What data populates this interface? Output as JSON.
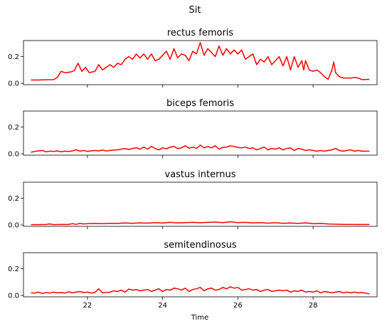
{
  "chart_data": {
    "type": "line",
    "title": "Sit",
    "xlabel": "Time",
    "ylabel": "",
    "xlim": [
      20.3,
      29.7
    ],
    "ylim": [
      -0.01,
      0.32
    ],
    "x_ticks": [
      22,
      24,
      26,
      28
    ],
    "x_tick_labels": [
      "22",
      "24",
      "26",
      "28"
    ],
    "y_ticks": [
      0.0,
      0.2
    ],
    "y_tick_labels": [
      "0.0",
      "0.2"
    ],
    "line_color": "#ff0000",
    "grid": false,
    "legend": "none",
    "panels": [
      {
        "title": "rectus femoris",
        "points": [
          [
            20.5,
            0.025
          ],
          [
            20.7,
            0.025
          ],
          [
            20.9,
            0.027
          ],
          [
            21.1,
            0.028
          ],
          [
            21.2,
            0.045
          ],
          [
            21.3,
            0.09
          ],
          [
            21.4,
            0.08
          ],
          [
            21.55,
            0.085
          ],
          [
            21.65,
            0.095
          ],
          [
            21.75,
            0.15
          ],
          [
            21.85,
            0.09
          ],
          [
            21.95,
            0.12
          ],
          [
            22.05,
            0.08
          ],
          [
            22.2,
            0.09
          ],
          [
            22.3,
            0.14
          ],
          [
            22.4,
            0.1
          ],
          [
            22.5,
            0.12
          ],
          [
            22.6,
            0.14
          ],
          [
            22.7,
            0.12
          ],
          [
            22.8,
            0.15
          ],
          [
            22.9,
            0.14
          ],
          [
            23.0,
            0.18
          ],
          [
            23.1,
            0.2
          ],
          [
            23.2,
            0.18
          ],
          [
            23.3,
            0.22
          ],
          [
            23.4,
            0.19
          ],
          [
            23.5,
            0.22
          ],
          [
            23.6,
            0.18
          ],
          [
            23.7,
            0.22
          ],
          [
            23.8,
            0.17
          ],
          [
            23.9,
            0.18
          ],
          [
            24.0,
            0.21
          ],
          [
            24.1,
            0.24
          ],
          [
            24.2,
            0.18
          ],
          [
            24.3,
            0.26
          ],
          [
            24.4,
            0.19
          ],
          [
            24.5,
            0.22
          ],
          [
            24.6,
            0.21
          ],
          [
            24.7,
            0.17
          ],
          [
            24.8,
            0.24
          ],
          [
            24.9,
            0.22
          ],
          [
            25.0,
            0.305
          ],
          [
            25.1,
            0.21
          ],
          [
            25.2,
            0.26
          ],
          [
            25.3,
            0.23
          ],
          [
            25.4,
            0.2
          ],
          [
            25.5,
            0.28
          ],
          [
            25.6,
            0.21
          ],
          [
            25.7,
            0.26
          ],
          [
            25.8,
            0.22
          ],
          [
            25.9,
            0.25
          ],
          [
            26.0,
            0.22
          ],
          [
            26.1,
            0.25
          ],
          [
            26.2,
            0.18
          ],
          [
            26.3,
            0.2
          ],
          [
            26.4,
            0.22
          ],
          [
            26.5,
            0.14
          ],
          [
            26.6,
            0.18
          ],
          [
            26.7,
            0.16
          ],
          [
            26.8,
            0.2
          ],
          [
            26.9,
            0.14
          ],
          [
            27.0,
            0.17
          ],
          [
            27.1,
            0.2
          ],
          [
            27.2,
            0.13
          ],
          [
            27.3,
            0.2
          ],
          [
            27.4,
            0.1
          ],
          [
            27.5,
            0.2
          ],
          [
            27.6,
            0.12
          ],
          [
            27.7,
            0.17
          ],
          [
            27.75,
            0.1
          ],
          [
            27.8,
            0.17
          ],
          [
            27.9,
            0.1
          ],
          [
            28.0,
            0.09
          ],
          [
            28.1,
            0.1
          ],
          [
            28.2,
            0.08
          ],
          [
            28.3,
            0.05
          ],
          [
            28.4,
            0.03
          ],
          [
            28.5,
            0.1
          ],
          [
            28.55,
            0.16
          ],
          [
            28.6,
            0.08
          ],
          [
            28.7,
            0.05
          ],
          [
            28.8,
            0.04
          ],
          [
            29.0,
            0.04
          ],
          [
            29.1,
            0.045
          ],
          [
            29.2,
            0.04
          ],
          [
            29.3,
            0.028
          ],
          [
            29.5,
            0.03
          ]
        ]
      },
      {
        "title": "biceps femoris",
        "points": [
          [
            20.5,
            0.012
          ],
          [
            20.6,
            0.018
          ],
          [
            20.7,
            0.022
          ],
          [
            20.8,
            0.025
          ],
          [
            20.9,
            0.015
          ],
          [
            21.0,
            0.02
          ],
          [
            21.1,
            0.018
          ],
          [
            21.2,
            0.022
          ],
          [
            21.3,
            0.016
          ],
          [
            21.4,
            0.02
          ],
          [
            21.5,
            0.018
          ],
          [
            21.6,
            0.022
          ],
          [
            21.7,
            0.03
          ],
          [
            21.8,
            0.02
          ],
          [
            21.9,
            0.025
          ],
          [
            22.0,
            0.018
          ],
          [
            22.1,
            0.022
          ],
          [
            22.2,
            0.025
          ],
          [
            22.3,
            0.022
          ],
          [
            22.4,
            0.028
          ],
          [
            22.5,
            0.022
          ],
          [
            22.6,
            0.025
          ],
          [
            22.7,
            0.028
          ],
          [
            22.8,
            0.03
          ],
          [
            22.9,
            0.035
          ],
          [
            23.0,
            0.04
          ],
          [
            23.1,
            0.032
          ],
          [
            23.2,
            0.04
          ],
          [
            23.3,
            0.046
          ],
          [
            23.4,
            0.035
          ],
          [
            23.5,
            0.05
          ],
          [
            23.6,
            0.035
          ],
          [
            23.7,
            0.055
          ],
          [
            23.8,
            0.04
          ],
          [
            23.9,
            0.03
          ],
          [
            24.0,
            0.045
          ],
          [
            24.1,
            0.038
          ],
          [
            24.2,
            0.05
          ],
          [
            24.3,
            0.055
          ],
          [
            24.4,
            0.04
          ],
          [
            24.5,
            0.045
          ],
          [
            24.6,
            0.06
          ],
          [
            24.7,
            0.042
          ],
          [
            24.8,
            0.05
          ],
          [
            24.9,
            0.04
          ],
          [
            25.0,
            0.065
          ],
          [
            25.1,
            0.045
          ],
          [
            25.2,
            0.055
          ],
          [
            25.3,
            0.045
          ],
          [
            25.4,
            0.06
          ],
          [
            25.5,
            0.035
          ],
          [
            25.6,
            0.048
          ],
          [
            25.7,
            0.05
          ],
          [
            25.8,
            0.06
          ],
          [
            25.9,
            0.055
          ],
          [
            26.0,
            0.048
          ],
          [
            26.1,
            0.045
          ],
          [
            26.2,
            0.05
          ],
          [
            26.3,
            0.04
          ],
          [
            26.4,
            0.045
          ],
          [
            26.5,
            0.03
          ],
          [
            26.6,
            0.04
          ],
          [
            26.7,
            0.05
          ],
          [
            26.8,
            0.03
          ],
          [
            26.9,
            0.04
          ],
          [
            27.0,
            0.035
          ],
          [
            27.1,
            0.045
          ],
          [
            27.2,
            0.03
          ],
          [
            27.3,
            0.04
          ],
          [
            27.4,
            0.045
          ],
          [
            27.5,
            0.025
          ],
          [
            27.6,
            0.04
          ],
          [
            27.7,
            0.035
          ],
          [
            27.8,
            0.025
          ],
          [
            27.9,
            0.03
          ],
          [
            28.0,
            0.025
          ],
          [
            28.1,
            0.02
          ],
          [
            28.2,
            0.025
          ],
          [
            28.3,
            0.02
          ],
          [
            28.4,
            0.025
          ],
          [
            28.5,
            0.03
          ],
          [
            28.6,
            0.04
          ],
          [
            28.7,
            0.025
          ],
          [
            28.8,
            0.02
          ],
          [
            28.9,
            0.025
          ],
          [
            29.0,
            0.03
          ],
          [
            29.1,
            0.02
          ],
          [
            29.2,
            0.025
          ],
          [
            29.3,
            0.02
          ],
          [
            29.5,
            0.02
          ]
        ]
      },
      {
        "title": "vastus internus",
        "points": [
          [
            20.5,
            0.003
          ],
          [
            20.7,
            0.003
          ],
          [
            20.9,
            0.004
          ],
          [
            21.0,
            0.008
          ],
          [
            21.1,
            0.003
          ],
          [
            21.3,
            0.005
          ],
          [
            21.5,
            0.004
          ],
          [
            21.6,
            0.01
          ],
          [
            21.7,
            0.005
          ],
          [
            21.8,
            0.012
          ],
          [
            21.9,
            0.008
          ],
          [
            22.0,
            0.01
          ],
          [
            22.2,
            0.012
          ],
          [
            22.4,
            0.01
          ],
          [
            22.6,
            0.013
          ],
          [
            22.8,
            0.012
          ],
          [
            23.0,
            0.015
          ],
          [
            23.2,
            0.013
          ],
          [
            23.4,
            0.016
          ],
          [
            23.6,
            0.014
          ],
          [
            23.8,
            0.018
          ],
          [
            24.0,
            0.015
          ],
          [
            24.2,
            0.02
          ],
          [
            24.4,
            0.016
          ],
          [
            24.6,
            0.018
          ],
          [
            24.8,
            0.02
          ],
          [
            25.0,
            0.017
          ],
          [
            25.2,
            0.02
          ],
          [
            25.4,
            0.022
          ],
          [
            25.6,
            0.018
          ],
          [
            25.8,
            0.024
          ],
          [
            26.0,
            0.018
          ],
          [
            26.2,
            0.02
          ],
          [
            26.4,
            0.016
          ],
          [
            26.6,
            0.018
          ],
          [
            26.8,
            0.014
          ],
          [
            27.0,
            0.017
          ],
          [
            27.2,
            0.013
          ],
          [
            27.4,
            0.015
          ],
          [
            27.6,
            0.012
          ],
          [
            27.8,
            0.016
          ],
          [
            28.0,
            0.01
          ],
          [
            28.2,
            0.012
          ],
          [
            28.4,
            0.008
          ],
          [
            28.6,
            0.006
          ],
          [
            28.8,
            0.005
          ],
          [
            29.0,
            0.005
          ],
          [
            29.2,
            0.004
          ],
          [
            29.5,
            0.004
          ]
        ]
      },
      {
        "title": "semitendinosus",
        "points": [
          [
            20.5,
            0.02
          ],
          [
            20.6,
            0.018
          ],
          [
            20.7,
            0.025
          ],
          [
            20.8,
            0.015
          ],
          [
            20.9,
            0.022
          ],
          [
            21.0,
            0.018
          ],
          [
            21.1,
            0.025
          ],
          [
            21.2,
            0.02
          ],
          [
            21.3,
            0.022
          ],
          [
            21.4,
            0.018
          ],
          [
            21.5,
            0.028
          ],
          [
            21.6,
            0.02
          ],
          [
            21.7,
            0.025
          ],
          [
            21.8,
            0.03
          ],
          [
            21.9,
            0.022
          ],
          [
            22.0,
            0.025
          ],
          [
            22.1,
            0.018
          ],
          [
            22.2,
            0.022
          ],
          [
            22.3,
            0.05
          ],
          [
            22.4,
            0.02
          ],
          [
            22.5,
            0.022
          ],
          [
            22.6,
            0.025
          ],
          [
            22.7,
            0.035
          ],
          [
            22.8,
            0.03
          ],
          [
            22.9,
            0.04
          ],
          [
            23.0,
            0.025
          ],
          [
            23.1,
            0.048
          ],
          [
            23.2,
            0.04
          ],
          [
            23.3,
            0.045
          ],
          [
            23.4,
            0.035
          ],
          [
            23.5,
            0.04
          ],
          [
            23.6,
            0.045
          ],
          [
            23.7,
            0.03
          ],
          [
            23.8,
            0.04
          ],
          [
            23.9,
            0.05
          ],
          [
            24.0,
            0.03
          ],
          [
            24.1,
            0.045
          ],
          [
            24.2,
            0.04
          ],
          [
            24.3,
            0.055
          ],
          [
            24.4,
            0.05
          ],
          [
            24.5,
            0.04
          ],
          [
            24.6,
            0.055
          ],
          [
            24.7,
            0.03
          ],
          [
            24.8,
            0.045
          ],
          [
            24.9,
            0.05
          ],
          [
            25.0,
            0.06
          ],
          [
            25.1,
            0.035
          ],
          [
            25.2,
            0.05
          ],
          [
            25.3,
            0.055
          ],
          [
            25.4,
            0.04
          ],
          [
            25.5,
            0.045
          ],
          [
            25.6,
            0.06
          ],
          [
            25.7,
            0.05
          ],
          [
            25.8,
            0.065
          ],
          [
            25.9,
            0.055
          ],
          [
            26.0,
            0.06
          ],
          [
            26.1,
            0.04
          ],
          [
            26.2,
            0.045
          ],
          [
            26.3,
            0.05
          ],
          [
            26.4,
            0.04
          ],
          [
            26.5,
            0.045
          ],
          [
            26.6,
            0.03
          ],
          [
            26.7,
            0.04
          ],
          [
            26.8,
            0.045
          ],
          [
            26.9,
            0.03
          ],
          [
            27.0,
            0.035
          ],
          [
            27.1,
            0.04
          ],
          [
            27.2,
            0.035
          ],
          [
            27.3,
            0.04
          ],
          [
            27.4,
            0.025
          ],
          [
            27.5,
            0.035
          ],
          [
            27.6,
            0.03
          ],
          [
            27.7,
            0.04
          ],
          [
            27.8,
            0.025
          ],
          [
            27.9,
            0.03
          ],
          [
            28.0,
            0.025
          ],
          [
            28.1,
            0.035
          ],
          [
            28.2,
            0.02
          ],
          [
            28.3,
            0.03
          ],
          [
            28.4,
            0.025
          ],
          [
            28.5,
            0.02
          ],
          [
            28.6,
            0.025
          ],
          [
            28.7,
            0.03
          ],
          [
            28.8,
            0.02
          ],
          [
            28.9,
            0.025
          ],
          [
            29.0,
            0.02
          ],
          [
            29.1,
            0.025
          ],
          [
            29.2,
            0.02
          ],
          [
            29.3,
            0.022
          ],
          [
            29.5,
            0.012
          ]
        ]
      }
    ]
  }
}
